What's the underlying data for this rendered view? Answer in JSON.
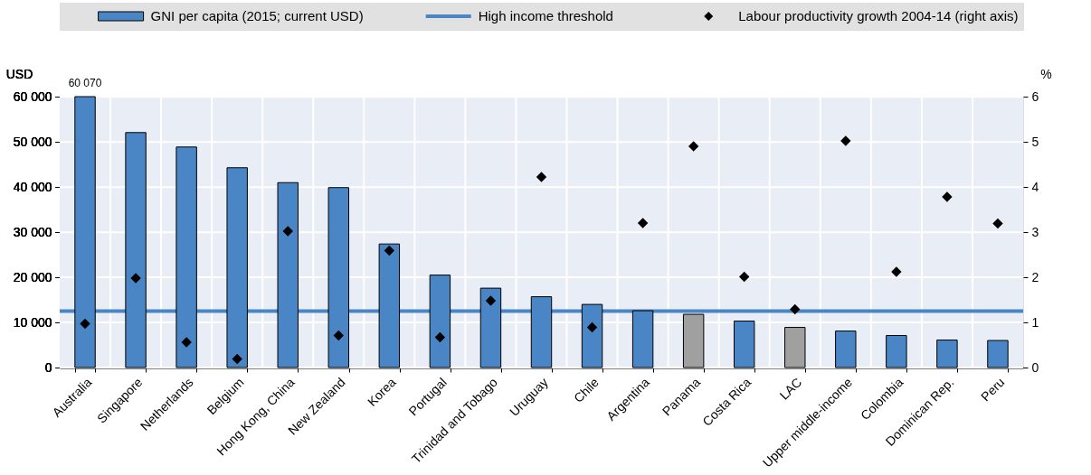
{
  "chart_data": {
    "type": "bar",
    "ylabel": "USD",
    "y2label": "%",
    "categories": [
      "Australia",
      "Singapore",
      "Netherlands",
      "Belgium",
      "Hong Kong, China",
      "New Zealand",
      "Korea",
      "Portugal",
      "Trinidad and Tobago",
      "Uruguay",
      "Chile",
      "Argentina",
      "Panama",
      "Costa Rica",
      "LAC",
      "Upper middle-income",
      "Colombia",
      "Dominican Rep.",
      "Peru"
    ],
    "series": [
      {
        "name": "GNI per capita (2015; current USD)",
        "color": "#4a86c5",
        "colors": [
          "#4a86c5",
          "#4a86c5",
          "#4a86c5",
          "#4a86c5",
          "#4a86c5",
          "#4a86c5",
          "#4a86c5",
          "#4a86c5",
          "#4a86c5",
          "#4a86c5",
          "#4a86c5",
          "#4a86c5",
          "#a0a0a0",
          "#4a86c5",
          "#a0a0a0",
          "#4a86c5",
          "#4a86c5",
          "#4a86c5",
          "#4a86c5"
        ],
        "values": [
          60070,
          52100,
          48900,
          44300,
          41000,
          39900,
          27400,
          20500,
          17600,
          15700,
          14000,
          12600,
          11800,
          10300,
          8900,
          8100,
          7100,
          6100,
          6000
        ],
        "value_labels": [
          "60 070",
          null,
          null,
          null,
          null,
          null,
          null,
          null,
          null,
          null,
          null,
          null,
          null,
          null,
          null,
          null,
          null,
          null,
          null
        ]
      },
      {
        "name": "Labour productivity growth 2004-14 (right axis)",
        "type": "scatter",
        "axis": "y2",
        "marker": "diamond",
        "color": "#000000",
        "values": [
          0.97,
          1.98,
          0.56,
          0.19,
          3.02,
          0.71,
          2.59,
          0.67,
          1.48,
          4.22,
          0.89,
          3.2,
          4.9,
          2.01,
          1.29,
          5.02,
          2.12,
          3.78,
          3.19
        ]
      }
    ],
    "ylim": [
      0,
      60070
    ],
    "yticks": [
      0,
      {
        "value": 10000,
        "label": "10 000"
      },
      {
        "value": 20000,
        "label": "20 000"
      },
      {
        "value": 30000,
        "label": "30 000"
      },
      {
        "value": 40000,
        "label": "40 000"
      },
      {
        "value": 50000,
        "label": "50 000"
      },
      {
        "value": 60000,
        "label": "60 000"
      }
    ],
    "y2lim": [
      0,
      6
    ],
    "y2ticks": [
      0,
      1,
      2,
      3,
      4,
      5,
      6
    ],
    "ref_lines": [
      {
        "axis": "y",
        "value": 12500,
        "label": "High income threshold",
        "color": "#4a86c5",
        "line_style": "solid"
      }
    ],
    "grid": true,
    "legend": "top"
  }
}
